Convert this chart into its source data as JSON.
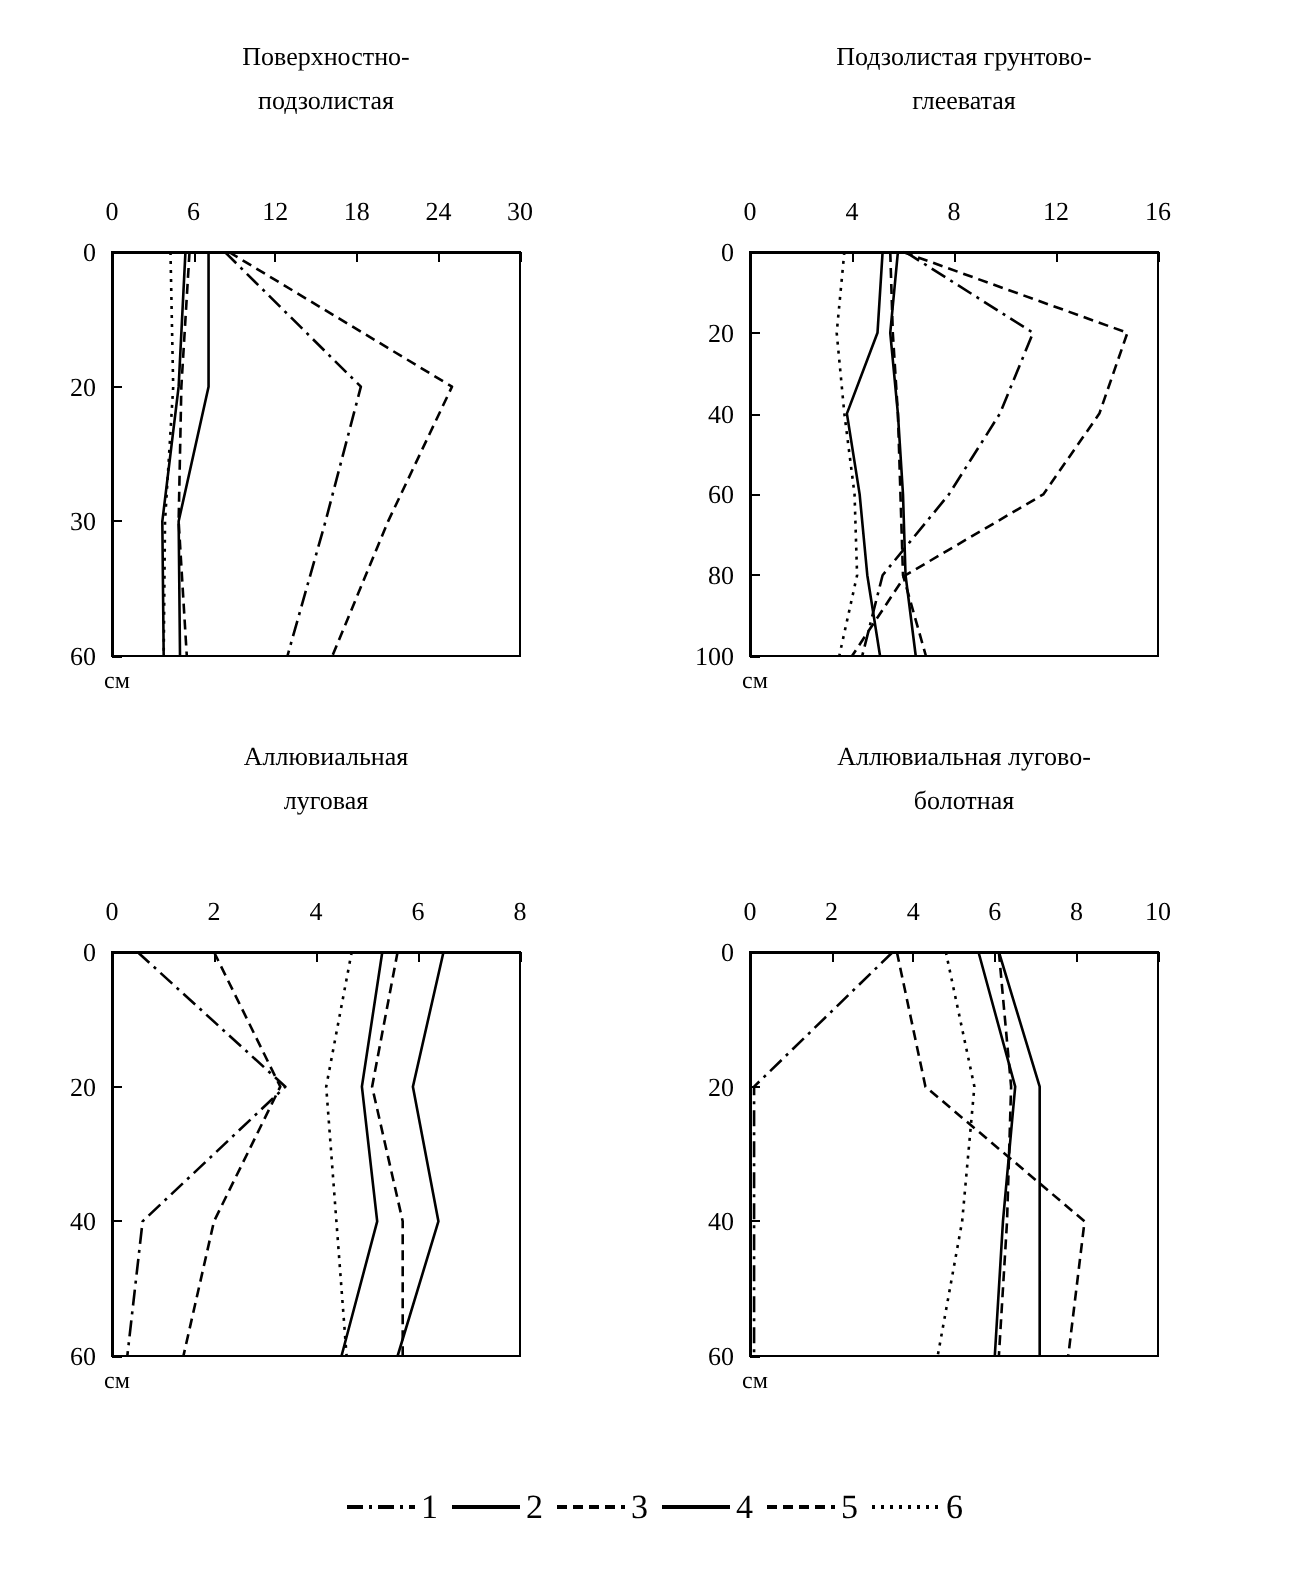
{
  "chart_data": [
    {
      "type": "line",
      "orientation": "horizontal",
      "title": "Поверхностно-\nподзолистая",
      "annotations": [
        "см"
      ],
      "categories": [
        "0",
        "20",
        "30",
        "60"
      ],
      "xlim": [
        0,
        30
      ],
      "xticks": [
        0,
        6,
        12,
        18,
        24,
        30
      ],
      "grid": false,
      "marker": "none",
      "series": [
        {
          "color": "#000000",
          "line_style": "dashdot",
          "values": [
            8.3,
            18.3,
            15.7,
            12.9
          ]
        },
        {
          "color": "#000000",
          "line_style": "solid",
          "values": [
            7.1,
            7.1,
            4.9,
            5.0
          ]
        },
        {
          "color": "#000000",
          "line_style": "dashed",
          "values": [
            8.6,
            25,
            20.3,
            16.2
          ]
        },
        {
          "color": "#000000",
          "line_style": "solid",
          "values": [
            5.4,
            4.9,
            3.7,
            3.8
          ]
        },
        {
          "color": "#000000",
          "line_style": "dashed",
          "values": [
            5.7,
            5.1,
            4.9,
            5.5
          ]
        },
        {
          "color": "#000000",
          "line_style": "dotted",
          "values": [
            4.3,
            4.5,
            3.9,
            3.8
          ]
        }
      ]
    },
    {
      "type": "line",
      "orientation": "horizontal",
      "title": "Подзолистая грунтово-\nглееватая",
      "annotations": [
        "см"
      ],
      "categories": [
        "0",
        "20",
        "40",
        "60",
        "80",
        "100"
      ],
      "xlim": [
        0,
        16
      ],
      "xticks": [
        0,
        4,
        8,
        12,
        16
      ],
      "grid": false,
      "marker": "none",
      "series": [
        {
          "color": "#000000",
          "line_style": "dashdot",
          "values": [
            6.1,
            11.1,
            9.8,
            7.8,
            5.2,
            4.4
          ]
        },
        {
          "color": "#000000",
          "line_style": "solid",
          "values": [
            5.8,
            5.5,
            5.8,
            6.0,
            6.1,
            6.5
          ]
        },
        {
          "color": "#000000",
          "line_style": "dashed",
          "values": [
            6.0,
            14.8,
            13.7,
            11.5,
            6.1,
            4.0
          ]
        },
        {
          "color": "#000000",
          "line_style": "solid",
          "values": [
            5.2,
            5.0,
            3.8,
            4.3,
            4.6,
            5.1
          ]
        },
        {
          "color": "#000000",
          "line_style": "dashed",
          "values": [
            5.5,
            5.6,
            5.8,
            5.9,
            6.0,
            6.9
          ]
        },
        {
          "color": "#000000",
          "line_style": "dotted",
          "values": [
            3.7,
            3.4,
            3.7,
            4.1,
            4.2,
            3.5
          ]
        }
      ]
    },
    {
      "type": "line",
      "orientation": "horizontal",
      "title": "Аллювиальная\nлуговая",
      "annotations": [
        "см"
      ],
      "categories": [
        "0",
        "20",
        "40",
        "60"
      ],
      "xlim": [
        0,
        8
      ],
      "xticks": [
        0,
        2,
        4,
        6,
        8
      ],
      "grid": false,
      "marker": "none",
      "series": [
        {
          "color": "#000000",
          "line_style": "dashdot",
          "values": [
            0.5,
            3.4,
            0.6,
            0.3
          ]
        },
        {
          "color": "#000000",
          "line_style": "solid",
          "values": [
            6.5,
            5.9,
            6.4,
            5.6
          ]
        },
        {
          "color": "#000000",
          "line_style": "dashed",
          "values": [
            2.0,
            3.3,
            2.0,
            1.4
          ]
        },
        {
          "color": "#000000",
          "line_style": "solid",
          "values": [
            5.3,
            4.9,
            5.2,
            4.5
          ]
        },
        {
          "color": "#000000",
          "line_style": "dashed",
          "values": [
            5.6,
            5.1,
            5.7,
            5.7
          ]
        },
        {
          "color": "#000000",
          "line_style": "dotted",
          "values": [
            4.7,
            4.2,
            4.4,
            4.6
          ]
        }
      ]
    },
    {
      "type": "line",
      "orientation": "horizontal",
      "title": "Аллювиальная лугово-\nболотная",
      "annotations": [
        "см"
      ],
      "categories": [
        "0",
        "20",
        "40",
        "60"
      ],
      "xlim": [
        0,
        10
      ],
      "xticks": [
        0,
        2,
        4,
        6,
        8,
        10
      ],
      "grid": false,
      "legend": "bottom",
      "marker": "none",
      "series": [
        {
          "name": "1",
          "color": "#000000",
          "line_style": "dashdot",
          "values": [
            3.5,
            0.1,
            0.1,
            0.1
          ]
        },
        {
          "name": "2",
          "color": "#000000",
          "line_style": "solid",
          "values": [
            6.1,
            7.1,
            7.1,
            7.1
          ]
        },
        {
          "name": "3",
          "color": "#000000",
          "line_style": "dashed",
          "values": [
            3.6,
            4.3,
            8.2,
            7.8
          ]
        },
        {
          "name": "4",
          "color": "#000000",
          "line_style": "solid",
          "values": [
            5.6,
            6.5,
            6.2,
            6.0
          ]
        },
        {
          "name": "5",
          "color": "#000000",
          "line_style": "dashed",
          "values": [
            6.1,
            6.4,
            6.3,
            6.1
          ]
        },
        {
          "name": "6",
          "color": "#000000",
          "line_style": "dotted",
          "values": [
            4.8,
            5.5,
            5.2,
            4.6
          ]
        }
      ]
    }
  ]
}
